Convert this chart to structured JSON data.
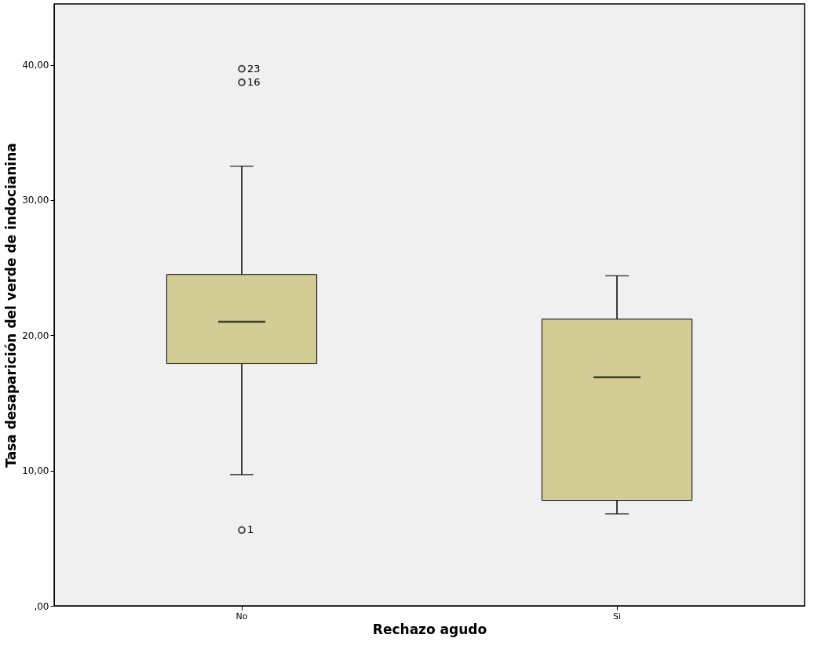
{
  "chart_data": {
    "type": "box",
    "xlabel": "Rechazo agudo",
    "ylabel": "Tasa desaparición del verde de indocianina",
    "categories": [
      "No",
      "Si"
    ],
    "boxes": [
      {
        "low": 9.7,
        "q1": 17.9,
        "median": 21.0,
        "q3": 24.5,
        "high": 32.5,
        "outliers": [
          39.7,
          38.7,
          5.6
        ]
      },
      {
        "low": 6.8,
        "q1": 7.8,
        "median": 16.9,
        "q3": 21.2,
        "high": 24.4
      }
    ],
    "color": "#d3cd95",
    "ylim": [
      0,
      44.5
    ],
    "yticks": [
      {
        "value": 0,
        "label": ",00"
      },
      {
        "value": 10,
        "label": "10,00"
      },
      {
        "value": 20,
        "label": "20,00"
      },
      {
        "value": 30,
        "label": "30,00"
      },
      {
        "value": 40,
        "label": "40,00"
      }
    ],
    "grid": false,
    "annotations": [
      "23",
      "16",
      "1"
    ]
  }
}
